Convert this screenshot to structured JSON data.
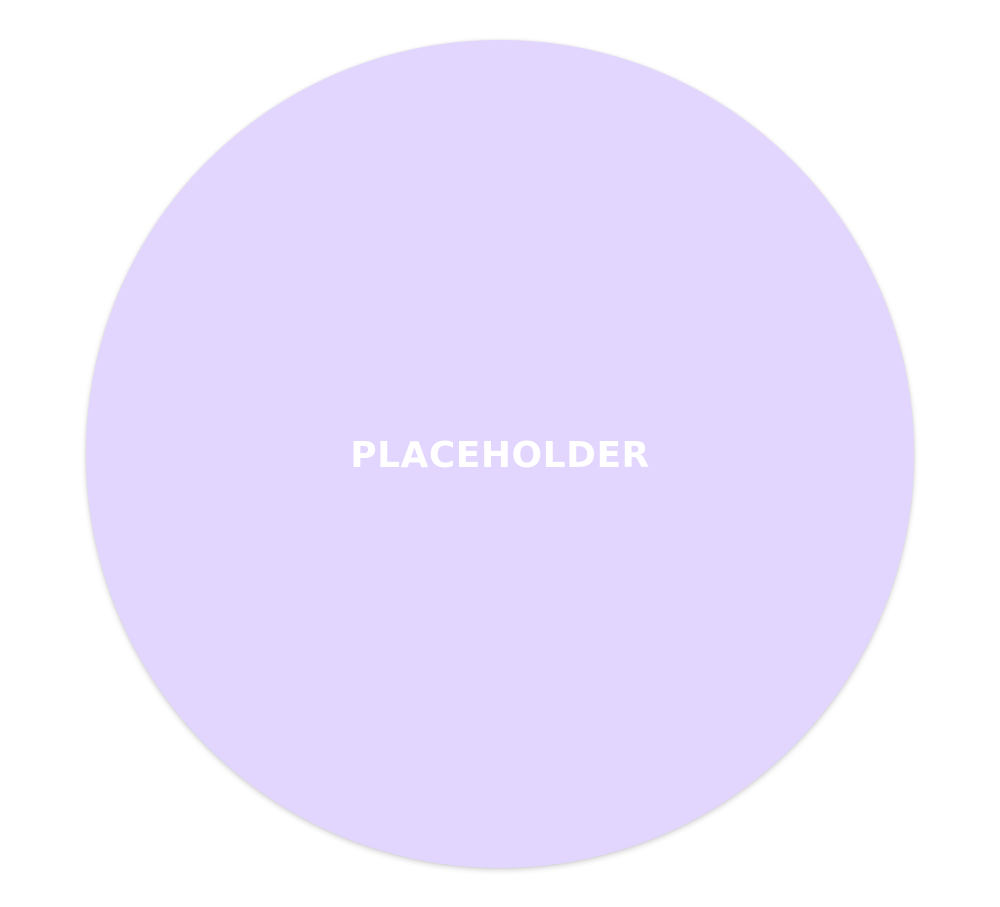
{
  "placeholder": {
    "label": "PLACEHOLDER",
    "fill_color": "#e2d5fe",
    "text_color": "#ffffff"
  }
}
